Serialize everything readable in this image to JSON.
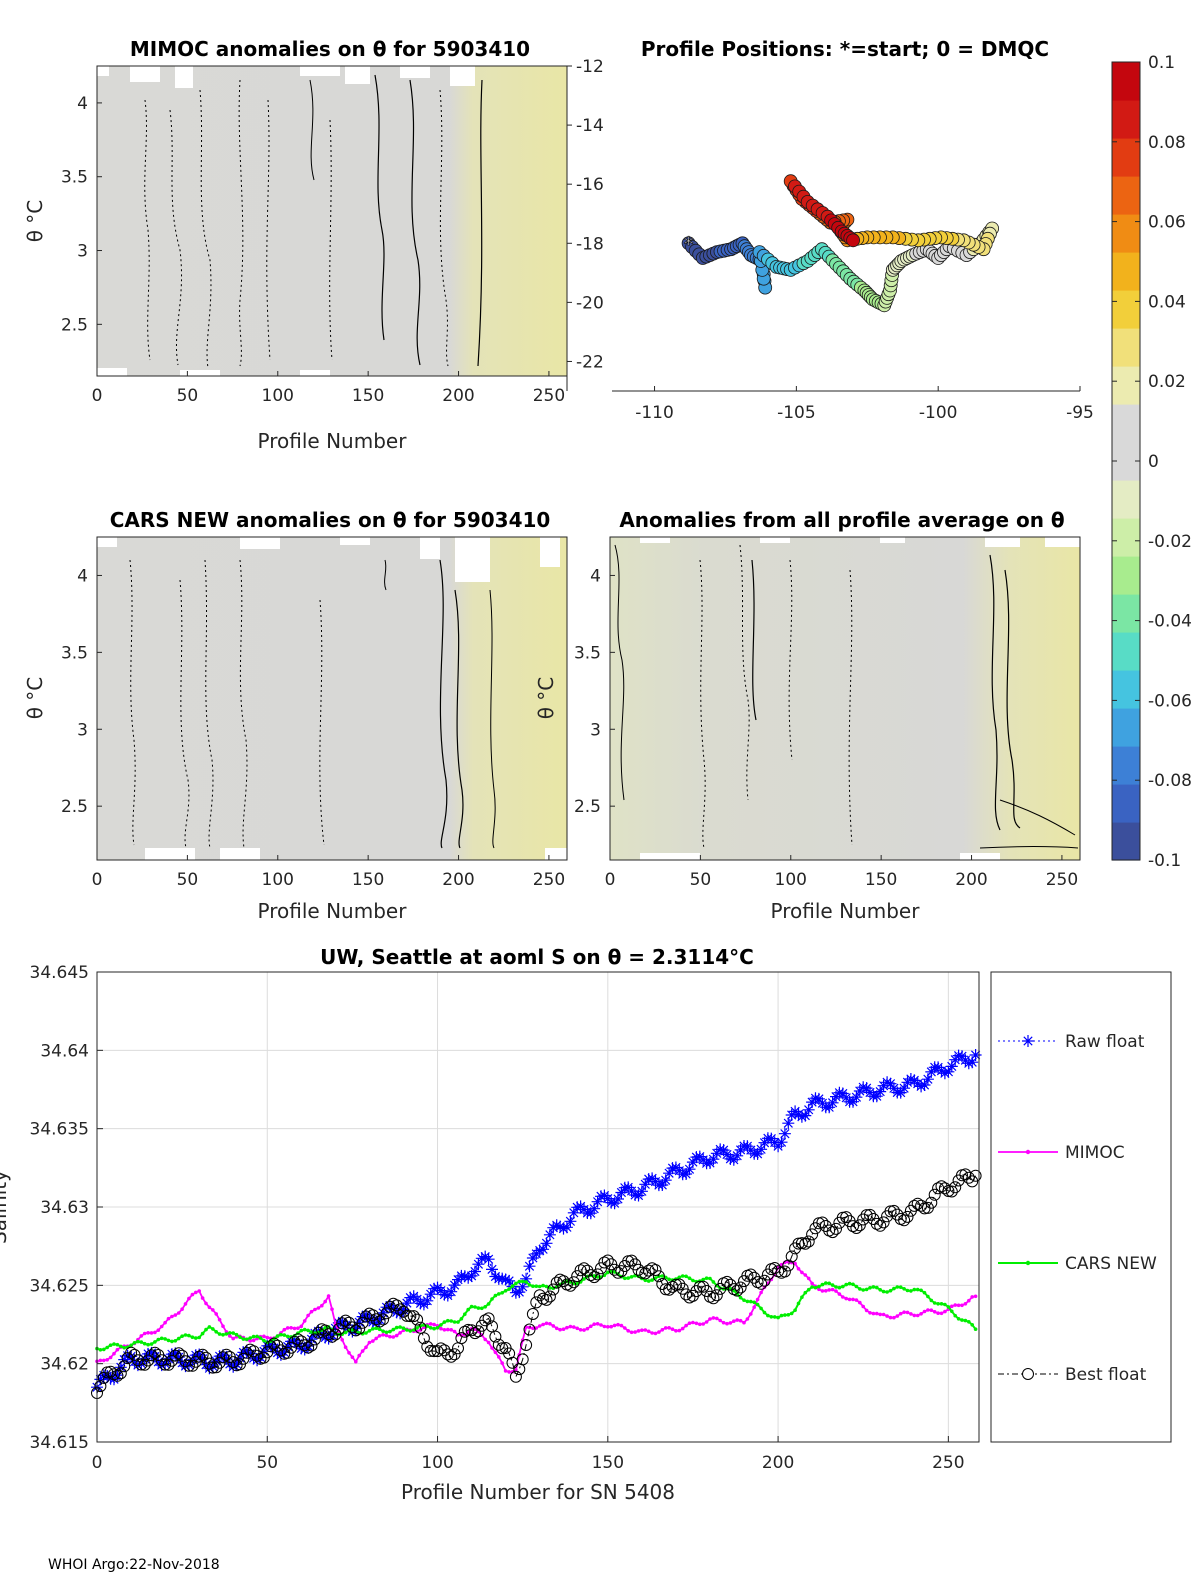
{
  "footer": "WHOI Argo:22-Nov-2018",
  "colors": {
    "axis": "#262626",
    "grid": "#dcdcdc",
    "raw": "#0000ff",
    "mimoc": "#ff00ff",
    "cars": "#00ee00",
    "best": "#000000",
    "field_gray": "#d8d8d8",
    "field_yellow": "#e8e5a8"
  },
  "colorbar": {
    "ticks": [
      "0.1",
      "0.08",
      "0.06",
      "0.04",
      "0.02",
      "0",
      "-0.02",
      "-0.04",
      "-0.06",
      "-0.08",
      "-0.1"
    ],
    "min": -0.1,
    "max": 0.1,
    "colors": [
      "#3b4f9c",
      "#3a63c2",
      "#3d80d6",
      "#3fa2e0",
      "#45c4e0",
      "#58dcc6",
      "#7be6a4",
      "#a8ec8e",
      "#cdeea8",
      "#e4ecc4",
      "#d9d9d9",
      "#d9d9d9",
      "#ecebb0",
      "#f1e07a",
      "#f2cf3a",
      "#f2b21c",
      "#f08c14",
      "#ec6412",
      "#e23c12",
      "#d21a14",
      "#c4060e"
    ]
  },
  "panel1": {
    "title": "MIMOC anomalies on θ  for 5903410",
    "ylabel": "θ °C",
    "xlabel": "Profile Number",
    "xticks": [
      "0",
      "50",
      "100",
      "150",
      "200",
      "250"
    ],
    "yticks": [
      "4",
      "3.5",
      "3",
      "2.5"
    ],
    "xlim": [
      0,
      260
    ],
    "ylim": [
      2.15,
      4.25
    ]
  },
  "panel2": {
    "title": "Profile Positions: *=start; 0 = DMQC",
    "xticks": [
      "-110",
      "-105",
      "-100",
      "-95"
    ],
    "yticks": [
      "-12",
      "-14",
      "-16",
      "-18",
      "-20",
      "-22"
    ],
    "xlim": [
      -111.5,
      -95
    ],
    "ylim": [
      -23,
      -12
    ]
  },
  "panel3": {
    "title": "CARS NEW anomalies on θ for 5903410",
    "ylabel": "θ °C",
    "xlabel": "Profile Number",
    "xticks": [
      "0",
      "50",
      "100",
      "150",
      "200",
      "250"
    ],
    "yticks": [
      "4",
      "3.5",
      "3",
      "2.5"
    ]
  },
  "panel4": {
    "title": "Anomalies from all profile average on θ",
    "ylabel": "θ °C",
    "xlabel": "Profile Number",
    "xticks": [
      "0",
      "50",
      "100",
      "150",
      "200",
      "250"
    ],
    "yticks": [
      "4",
      "3.5",
      "3",
      "2.5"
    ]
  },
  "chart_data": {
    "type": "line",
    "title": "UW, Seattle at aoml S on θ = 2.3114°C",
    "xlabel": "Profile Number for SN 5408",
    "ylabel": "Salinity",
    "xlim": [
      0,
      259
    ],
    "ylim": [
      34.615,
      34.645
    ],
    "xticks": [
      "0",
      "50",
      "100",
      "150",
      "200",
      "250"
    ],
    "yticks": [
      "34.645",
      "34.64",
      "34.635",
      "34.63",
      "34.625",
      "34.62",
      "34.615"
    ],
    "grid": true,
    "legend_position": "right",
    "x": [
      0,
      10,
      20,
      30,
      33,
      40,
      50,
      60,
      68,
      70,
      76,
      80,
      90,
      100,
      106,
      110,
      115,
      120,
      123,
      126,
      130,
      140,
      150,
      160,
      170,
      180,
      190,
      200,
      205,
      210,
      220,
      230,
      240,
      250,
      258
    ],
    "series": [
      {
        "name": "Raw float",
        "values": [
          34.6185,
          34.6203,
          34.6203,
          34.6202,
          34.6201,
          34.6202,
          34.6208,
          34.6212,
          34.622,
          34.6222,
          34.6225,
          34.6228,
          34.6237,
          34.6245,
          34.625,
          34.626,
          34.6266,
          34.625,
          34.6248,
          34.6253,
          34.6275,
          34.6295,
          34.6305,
          34.6312,
          34.6322,
          34.6332,
          34.6335,
          34.6342,
          34.6358,
          34.6365,
          34.637,
          34.6375,
          34.6378,
          34.639,
          34.6397
        ]
      },
      {
        "name": "MIMOC",
        "values": [
          34.62,
          34.6213,
          34.6225,
          34.6247,
          34.6236,
          34.6216,
          34.6216,
          34.6225,
          34.6243,
          34.6224,
          34.62,
          34.6215,
          34.622,
          34.6225,
          34.6218,
          34.6222,
          34.6215,
          34.6195,
          34.6197,
          34.6222,
          34.6225,
          34.6222,
          34.6225,
          34.622,
          34.6222,
          34.6228,
          34.6226,
          34.6262,
          34.6265,
          34.625,
          34.6243,
          34.623,
          34.6232,
          34.6234,
          34.6243
        ]
      },
      {
        "name": "CARS NEW",
        "values": [
          34.621,
          34.6212,
          34.6215,
          34.6218,
          34.6222,
          34.6218,
          34.6215,
          34.622,
          34.6222,
          34.622,
          34.622,
          34.6221,
          34.6222,
          34.6224,
          34.6228,
          34.6235,
          34.6238,
          34.6248,
          34.625,
          34.6253,
          34.6248,
          34.6252,
          34.6258,
          34.6254,
          34.6255,
          34.6253,
          34.6242,
          34.6228,
          34.6235,
          34.625,
          34.625,
          34.6247,
          34.6248,
          34.6235,
          34.6222
        ]
      },
      {
        "name": "Best float",
        "values": [
          34.6185,
          34.6203,
          34.6203,
          34.6202,
          34.6201,
          34.6202,
          34.6208,
          34.6212,
          34.622,
          34.6222,
          34.6225,
          34.6228,
          34.6237,
          34.6205,
          34.621,
          34.6223,
          34.6225,
          34.621,
          34.619,
          34.6215,
          34.6242,
          34.6255,
          34.6262,
          34.6262,
          34.6247,
          34.6245,
          34.6252,
          34.6258,
          34.627,
          34.6285,
          34.629,
          34.6292,
          34.6297,
          34.6313,
          34.632
        ]
      }
    ]
  },
  "track": {
    "lon": [
      -108.8,
      -108.3,
      -107.8,
      -107.3,
      -106.9,
      -106.6,
      -106.2,
      -106.1,
      -106.3,
      -105.7,
      -105.2,
      -104.6,
      -104.1,
      -103.6,
      -103.1,
      -102.6,
      -102.3,
      -101.9,
      -101.7,
      -101.6,
      -101.3,
      -100.9,
      -100.4,
      -100.0,
      -99.6,
      -99.0,
      -98.5,
      -98.1,
      -98.4,
      -99.1,
      -99.9,
      -100.7,
      -101.6,
      -102.5,
      -103.2,
      -103.5,
      -103.2,
      -103.8,
      -104.3,
      -104.8,
      -105.2,
      -104.6,
      -103.9,
      -103.4,
      -103.0
    ],
    "lat": [
      -18.0,
      -18.5,
      -18.3,
      -18.2,
      -18.0,
      -18.4,
      -18.6,
      -19.5,
      -18.3,
      -18.8,
      -18.9,
      -18.6,
      -18.2,
      -18.7,
      -19.2,
      -19.6,
      -19.9,
      -20.1,
      -19.6,
      -18.9,
      -18.6,
      -18.4,
      -18.2,
      -18.5,
      -18.1,
      -18.4,
      -18.0,
      -17.5,
      -18.2,
      -17.9,
      -17.8,
      -17.9,
      -17.8,
      -17.8,
      -17.9,
      -17.5,
      -17.2,
      -17.3,
      -16.9,
      -16.5,
      -15.9,
      -16.6,
      -17.1,
      -17.6,
      -17.9
    ]
  }
}
